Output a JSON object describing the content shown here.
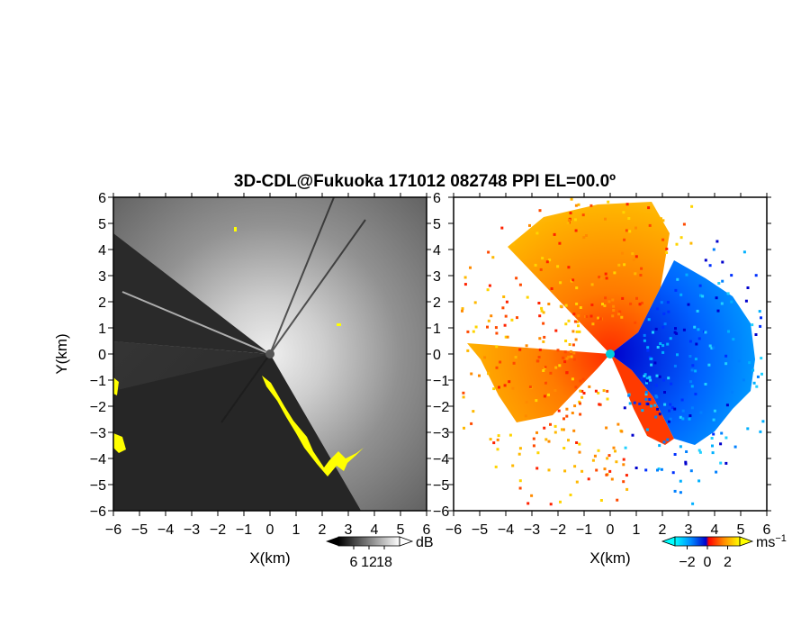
{
  "chart_data": {
    "type": "heatmap",
    "title": "3D-CDL@Fukuoka 171012 082748 PPI EL=00.0º",
    "panels": [
      {
        "name": "reflectivity",
        "xlabel": "X(km)",
        "ylabel": "Y(km)",
        "xlim": [
          -6,
          6
        ],
        "ylim": [
          -6,
          6
        ],
        "xticks": [
          "−6",
          "−5",
          "−4",
          "−3",
          "−2",
          "−1",
          "0",
          "1",
          "2",
          "3",
          "4",
          "5",
          "6"
        ],
        "yticks": [
          "6",
          "5",
          "4",
          "3",
          "2",
          "1",
          "0",
          "−1",
          "−2",
          "−3",
          "−4",
          "−5",
          "−6"
        ],
        "colorbar": {
          "unit": "dB",
          "tick_labels": [
            "6",
            "12",
            "18"
          ],
          "tick_values": [
            6,
            12,
            18
          ],
          "range": [
            0,
            24
          ],
          "colors": [
            "#000000",
            "#ffffff"
          ]
        },
        "highlight_color": "#ffff00"
      },
      {
        "name": "radial-velocity",
        "xlabel": "X(km)",
        "xlim": [
          -6,
          6
        ],
        "ylim": [
          -6,
          6
        ],
        "xticks": [
          "−6",
          "−5",
          "−4",
          "−3",
          "−2",
          "−1",
          "0",
          "1",
          "2",
          "3",
          "4",
          "5",
          "6"
        ],
        "yticks": [
          "6",
          "5",
          "4",
          "3",
          "2",
          "1",
          "0",
          "−1",
          "−2",
          "−3",
          "−4",
          "−5",
          "−6"
        ],
        "colorbar": {
          "unit": "ms",
          "unit_exponent": "−1",
          "tick_labels": [
            "−2",
            "0",
            "2"
          ],
          "tick_values": [
            -2,
            0,
            2
          ],
          "range": [
            -3.2,
            3.2
          ],
          "colors": [
            "#00ffff",
            "#0088ff",
            "#0000cc",
            "#ff0000",
            "#ff8800",
            "#ffff00"
          ]
        }
      }
    ]
  }
}
